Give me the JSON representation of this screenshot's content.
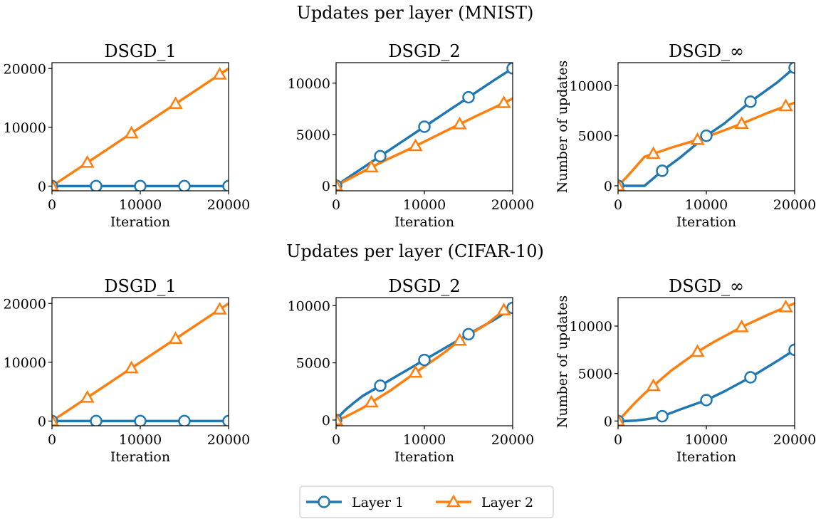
{
  "figure": {
    "row_titles": [
      "Updates per layer (MNIST)",
      "Updates per layer (CIFAR-10)"
    ]
  },
  "legend": {
    "location": "bottom-center",
    "entries": [
      {
        "label": "Layer 1",
        "color": "#1f77b4",
        "marker": "circle"
      },
      {
        "label": "Layer 2",
        "color": "#ff7f0e",
        "marker": "triangle"
      }
    ]
  },
  "chart_data": [
    {
      "type": "line",
      "row": 0,
      "col": 0,
      "title": "DSGD_1",
      "xlabel": "Iteration",
      "ylabel": "",
      "xlim": [
        0,
        20000
      ],
      "ylim": [
        -800,
        21000
      ],
      "xticks": [
        0,
        10000,
        20000
      ],
      "yticks": [
        0,
        10000,
        20000
      ],
      "series": [
        {
          "name": "Layer 1",
          "color": "#1f77b4",
          "marker": "circle",
          "x": [
            0,
            2000,
            4000,
            6000,
            8000,
            10000,
            12000,
            14000,
            16000,
            18000,
            20000
          ],
          "y": [
            0,
            0,
            0,
            0,
            0,
            0,
            0,
            0,
            0,
            0,
            0
          ],
          "marker_x": [
            0,
            5000,
            10000,
            15000,
            20000
          ]
        },
        {
          "name": "Layer 2",
          "color": "#ff7f0e",
          "marker": "triangle",
          "x": [
            0,
            2000,
            4000,
            6000,
            8000,
            10000,
            12000,
            14000,
            16000,
            18000,
            20000
          ],
          "y": [
            0,
            2000,
            4000,
            6000,
            8000,
            10000,
            12000,
            14000,
            16000,
            18000,
            20000
          ],
          "marker_x": [
            0,
            4000,
            9000,
            14000,
            19000
          ]
        }
      ]
    },
    {
      "type": "line",
      "row": 0,
      "col": 1,
      "title": "DSGD_2",
      "xlabel": "Iteration",
      "ylabel": "",
      "xlim": [
        0,
        20000
      ],
      "ylim": [
        -500,
        12000
      ],
      "xticks": [
        0,
        10000,
        20000
      ],
      "yticks": [
        0,
        5000,
        10000
      ],
      "series": [
        {
          "name": "Layer 1",
          "color": "#1f77b4",
          "marker": "circle",
          "x": [
            0,
            2000,
            4000,
            6000,
            8000,
            10000,
            12000,
            14000,
            16000,
            18000,
            20000
          ],
          "y": [
            0,
            1150,
            2300,
            3450,
            4600,
            5750,
            6900,
            8050,
            9200,
            10350,
            11450
          ],
          "marker_x": [
            0,
            5000,
            10000,
            15000,
            20000
          ]
        },
        {
          "name": "Layer 2",
          "color": "#ff7f0e",
          "marker": "triangle",
          "x": [
            0,
            2000,
            4000,
            6000,
            8000,
            10000,
            12000,
            14000,
            16000,
            18000,
            20000
          ],
          "y": [
            0,
            900,
            1800,
            2650,
            3450,
            4300,
            5150,
            6000,
            6850,
            7650,
            8500
          ],
          "marker_x": [
            0,
            4000,
            9000,
            14000,
            19000
          ]
        }
      ]
    },
    {
      "type": "line",
      "row": 0,
      "col": 2,
      "title": "DSGD_∞",
      "xlabel": "Iteration",
      "ylabel": "Number of updates",
      "xlim": [
        0,
        20000
      ],
      "ylim": [
        -500,
        12300
      ],
      "xticks": [
        0,
        10000,
        20000
      ],
      "yticks": [
        0,
        5000,
        10000
      ],
      "series": [
        {
          "name": "Layer 1",
          "color": "#1f77b4",
          "marker": "circle",
          "x": [
            0,
            1000,
            2000,
            3000,
            5000,
            7000,
            10000,
            12000,
            15000,
            18000,
            20000
          ],
          "y": [
            0,
            0,
            0,
            0,
            1500,
            2800,
            5000,
            6200,
            8400,
            10300,
            11800
          ],
          "marker_x": [
            0,
            5000,
            10000,
            15000,
            20000
          ]
        },
        {
          "name": "Layer 2",
          "color": "#ff7f0e",
          "marker": "triangle",
          "x": [
            0,
            1000,
            2000,
            3000,
            4000,
            6000,
            9000,
            11000,
            14000,
            17000,
            20000
          ],
          "y": [
            0,
            900,
            1900,
            2900,
            3200,
            3800,
            4600,
            5200,
            6200,
            7300,
            8300
          ],
          "marker_x": [
            0,
            4000,
            9000,
            14000,
            19000
          ]
        }
      ]
    },
    {
      "type": "line",
      "row": 1,
      "col": 0,
      "title": "DSGD_1",
      "xlabel": "Iteration",
      "ylabel": "",
      "xlim": [
        0,
        20000
      ],
      "ylim": [
        -800,
        21000
      ],
      "xticks": [
        0,
        10000,
        20000
      ],
      "yticks": [
        0,
        10000,
        20000
      ],
      "series": [
        {
          "name": "Layer 1",
          "color": "#1f77b4",
          "marker": "circle",
          "x": [
            0,
            2000,
            4000,
            6000,
            8000,
            10000,
            12000,
            14000,
            16000,
            18000,
            20000
          ],
          "y": [
            0,
            0,
            0,
            0,
            0,
            0,
            0,
            0,
            0,
            0,
            0
          ],
          "marker_x": [
            0,
            5000,
            10000,
            15000,
            20000
          ]
        },
        {
          "name": "Layer 2",
          "color": "#ff7f0e",
          "marker": "triangle",
          "x": [
            0,
            2000,
            4000,
            6000,
            8000,
            10000,
            12000,
            14000,
            16000,
            18000,
            20000
          ],
          "y": [
            0,
            2000,
            4000,
            6000,
            8000,
            10000,
            12000,
            14000,
            16000,
            18000,
            20000
          ],
          "marker_x": [
            0,
            4000,
            9000,
            14000,
            19000
          ]
        }
      ]
    },
    {
      "type": "line",
      "row": 1,
      "col": 1,
      "title": "DSGD_2",
      "xlabel": "Iteration",
      "ylabel": "",
      "xlim": [
        0,
        20000
      ],
      "ylim": [
        -500,
        10700
      ],
      "xticks": [
        0,
        10000,
        20000
      ],
      "yticks": [
        0,
        5000,
        10000
      ],
      "series": [
        {
          "name": "Layer 1",
          "color": "#1f77b4",
          "marker": "circle",
          "x": [
            0,
            500,
            1000,
            2000,
            3000,
            5000,
            7000,
            10000,
            13000,
            15000,
            18000,
            20000
          ],
          "y": [
            0,
            450,
            850,
            1500,
            2100,
            3000,
            3900,
            5250,
            6600,
            7500,
            8800,
            9800
          ],
          "marker_x": [
            0,
            5000,
            10000,
            15000,
            20000
          ]
        },
        {
          "name": "Layer 2",
          "color": "#ff7f0e",
          "marker": "triangle",
          "x": [
            0,
            1000,
            2000,
            3000,
            4000,
            6000,
            9000,
            12000,
            14000,
            17000,
            19000,
            20000
          ],
          "y": [
            0,
            250,
            650,
            1050,
            1550,
            2500,
            4150,
            5750,
            6950,
            8350,
            9600,
            10100
          ],
          "marker_x": [
            0,
            4000,
            9000,
            14000,
            19000
          ]
        }
      ]
    },
    {
      "type": "line",
      "row": 1,
      "col": 2,
      "title": "DSGD_∞",
      "xlabel": "Iteration",
      "ylabel": "Number of updates",
      "xlim": [
        0,
        20000
      ],
      "ylim": [
        -500,
        13000
      ],
      "xticks": [
        0,
        10000,
        20000
      ],
      "yticks": [
        0,
        5000,
        10000
      ],
      "series": [
        {
          "name": "Layer 1",
          "color": "#1f77b4",
          "marker": "circle",
          "x": [
            0,
            1000,
            2000,
            3000,
            4000,
            5000,
            7000,
            10000,
            12000,
            15000,
            18000,
            20000
          ],
          "y": [
            0,
            0,
            50,
            150,
            300,
            500,
            1200,
            2200,
            3100,
            4600,
            6300,
            7500
          ],
          "marker_x": [
            0,
            5000,
            10000,
            15000,
            20000
          ]
        },
        {
          "name": "Layer 2",
          "color": "#ff7f0e",
          "marker": "triangle",
          "x": [
            0,
            1000,
            2000,
            3000,
            4000,
            6000,
            9000,
            11000,
            14000,
            17000,
            19000,
            20000
          ],
          "y": [
            0,
            1000,
            2000,
            2900,
            3700,
            5300,
            7300,
            8400,
            9900,
            11200,
            12000,
            12400
          ],
          "marker_x": [
            0,
            4000,
            9000,
            14000,
            19000
          ]
        }
      ]
    }
  ]
}
